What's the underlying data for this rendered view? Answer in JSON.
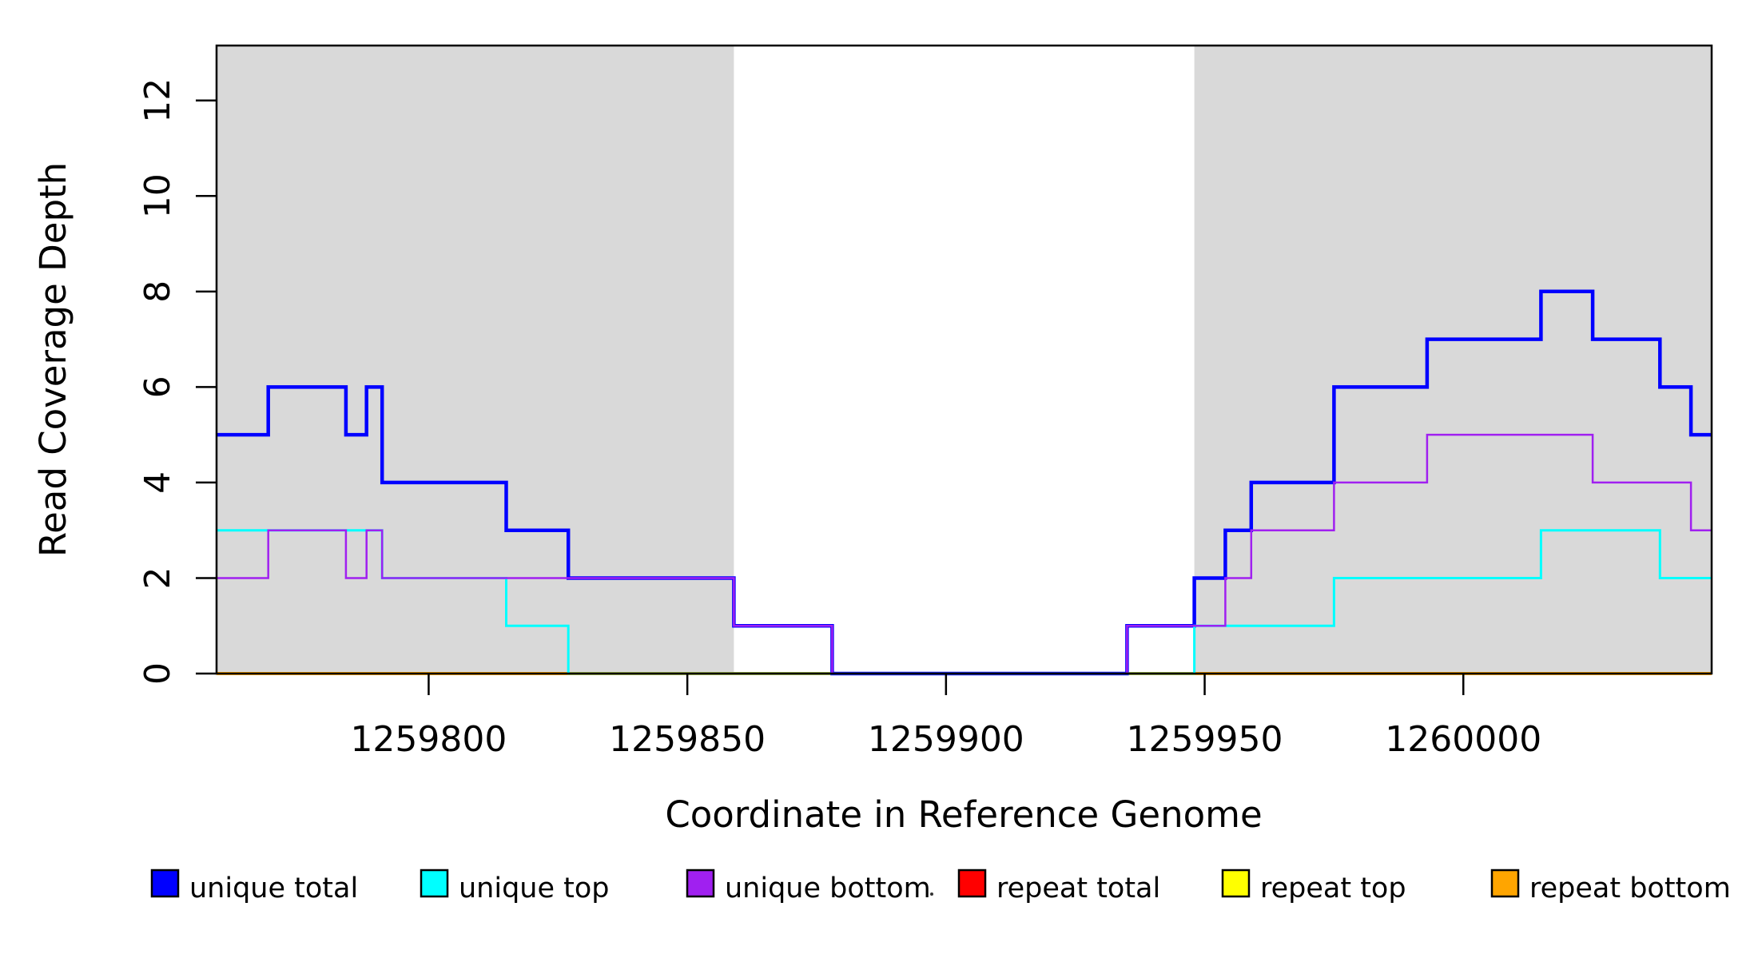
{
  "chart_data": {
    "type": "line",
    "subtype": "step",
    "title": "",
    "xlabel": "Coordinate in Reference Genome",
    "ylabel": "Read Coverage Depth",
    "xlim": [
      1259759,
      1260048
    ],
    "ylim": [
      0,
      13.15
    ],
    "x_ticks": [
      1259800,
      1259850,
      1259900,
      1259950,
      1260000
    ],
    "y_ticks": [
      0,
      2,
      4,
      6,
      8,
      10,
      12
    ],
    "grid": false,
    "legend_position": "bottom",
    "background_color": "#ffffff",
    "shaded_region_color": "#d9d9d9",
    "shaded_regions": [
      {
        "name": "left-gray-region",
        "x0": 1259759,
        "x1": 1259859
      },
      {
        "name": "right-gray-region",
        "x0": 1259948,
        "x1": 1260048
      }
    ],
    "series": [
      {
        "name": "repeat total",
        "color": "#FF0000",
        "width": 3,
        "segments": [
          [
            1259759,
            1260048,
            0
          ]
        ]
      },
      {
        "name": "repeat top",
        "color": "#FFFF00",
        "width": 3,
        "segments": [
          [
            1259759,
            1260048,
            0
          ]
        ]
      },
      {
        "name": "repeat bottom",
        "color": "#FFA500",
        "width": 4,
        "segments": [
          [
            1259759,
            1260048,
            0
          ]
        ]
      },
      {
        "name": "unique total",
        "color": "#0000FF",
        "width": 4.5,
        "segments": [
          [
            1259759,
            1259769,
            5
          ],
          [
            1259769,
            1259784,
            6
          ],
          [
            1259784,
            1259788,
            5
          ],
          [
            1259788,
            1259791,
            6
          ],
          [
            1259791,
            1259815,
            4
          ],
          [
            1259815,
            1259827,
            3
          ],
          [
            1259827,
            1259859,
            2
          ],
          [
            1259859,
            1259878,
            1
          ],
          [
            1259878,
            1259935,
            0
          ],
          [
            1259935,
            1259948,
            1
          ],
          [
            1259948,
            1259954,
            2
          ],
          [
            1259954,
            1259959,
            3
          ],
          [
            1259959,
            1259975,
            4
          ],
          [
            1259975,
            1259993,
            6
          ],
          [
            1259993,
            1260015,
            7
          ],
          [
            1260015,
            1260025,
            8
          ],
          [
            1260025,
            1260038,
            7
          ],
          [
            1260038,
            1260044,
            6
          ],
          [
            1260044,
            1260048,
            5
          ]
        ]
      },
      {
        "name": "unique top",
        "color": "#00FFFF",
        "width": 3,
        "segments": [
          [
            1259759,
            1259791,
            3
          ],
          [
            1259791,
            1259815,
            2
          ],
          [
            1259815,
            1259827,
            1
          ],
          [
            1259827,
            1259948,
            0
          ],
          [
            1259948,
            1259975,
            1
          ],
          [
            1259975,
            1260015,
            2
          ],
          [
            1260015,
            1260038,
            3
          ],
          [
            1260038,
            1260048,
            2
          ]
        ]
      },
      {
        "name": "unique bottom",
        "color": "#A020F0",
        "width": 2.5,
        "segments": [
          [
            1259759,
            1259769,
            2
          ],
          [
            1259769,
            1259784,
            3
          ],
          [
            1259784,
            1259788,
            2
          ],
          [
            1259788,
            1259791,
            3
          ],
          [
            1259791,
            1259859,
            2
          ],
          [
            1259859,
            1259878,
            1
          ],
          [
            1259878,
            1259935,
            0
          ],
          [
            1259935,
            1259954,
            1
          ],
          [
            1259954,
            1259959,
            2
          ],
          [
            1259959,
            1259975,
            3
          ],
          [
            1259975,
            1259993,
            4
          ],
          [
            1259993,
            1260025,
            5
          ],
          [
            1260025,
            1260044,
            4
          ],
          [
            1260044,
            1260048,
            3
          ]
        ]
      }
    ],
    "legend": {
      "items": [
        {
          "label": "unique total",
          "color": "#0000FF"
        },
        {
          "label": "unique top",
          "color": "#00FFFF"
        },
        {
          "label": "unique bottom",
          "color": "#A020F0"
        },
        {
          "label": "repeat total",
          "color": "#FF0000"
        },
        {
          "label": "repeat top",
          "color": "#FFFF00"
        },
        {
          "label": "repeat bottom",
          "color": "#FFA500"
        }
      ]
    }
  }
}
